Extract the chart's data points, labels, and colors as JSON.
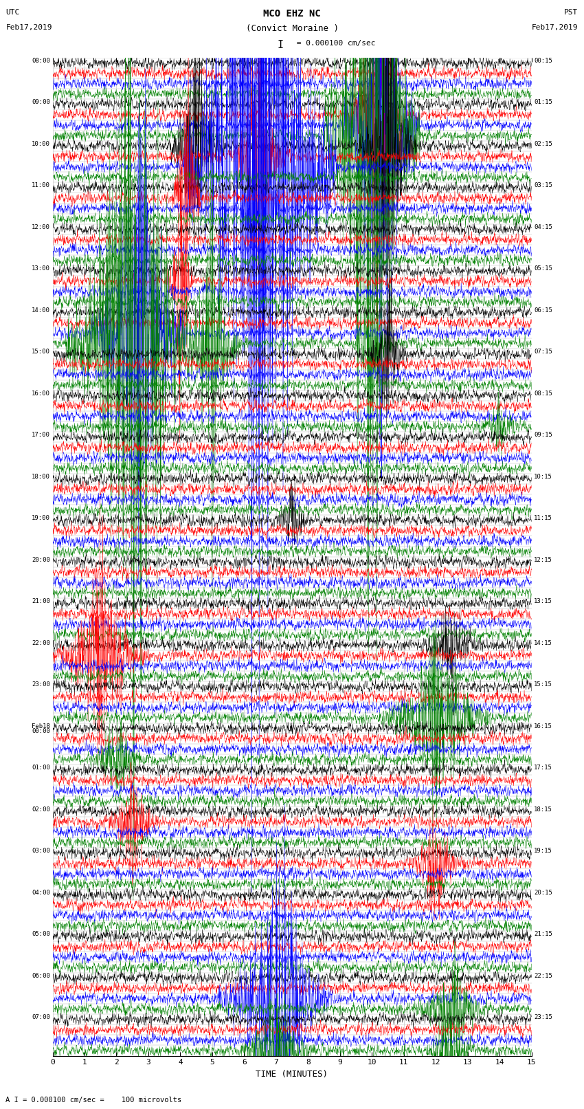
{
  "title_line1": "MCO EHZ NC",
  "title_line2": "(Convict Moraine )",
  "scale_label": "I = 0.000100 cm/sec",
  "bottom_label": "A I = 0.000100 cm/sec =    100 microvolts",
  "utc_label": "UTC\nFeb17,2019",
  "pst_label": "PST\nFeb17,2019",
  "xlabel": "TIME (MINUTES)",
  "left_times": [
    "08:00",
    "09:00",
    "10:00",
    "11:00",
    "12:00",
    "13:00",
    "14:00",
    "15:00",
    "16:00",
    "17:00",
    "18:00",
    "19:00",
    "20:00",
    "21:00",
    "22:00",
    "23:00",
    "Feb18\n00:00",
    "01:00",
    "02:00",
    "03:00",
    "04:00",
    "05:00",
    "06:00",
    "07:00"
  ],
  "right_times": [
    "00:15",
    "01:15",
    "02:15",
    "03:15",
    "04:15",
    "05:15",
    "06:15",
    "07:15",
    "08:15",
    "09:15",
    "10:15",
    "11:15",
    "12:15",
    "13:15",
    "14:15",
    "15:15",
    "16:15",
    "17:15",
    "18:15",
    "19:15",
    "20:15",
    "21:15",
    "22:15",
    "23:15"
  ],
  "colors": [
    "black",
    "red",
    "blue",
    "green"
  ],
  "n_rows": 24,
  "n_traces_per_row": 4,
  "minutes": 15,
  "background": "white",
  "grid_color": "#bbbbbb",
  "figsize": [
    8.5,
    16.13
  ],
  "dpi": 100,
  "events": [
    [
      1,
      3,
      10.0,
      12.0,
      0.5
    ],
    [
      1,
      1,
      10.2,
      5.0,
      0.3
    ],
    [
      1,
      2,
      10.3,
      6.0,
      0.4
    ],
    [
      2,
      0,
      10.5,
      4.0,
      0.3
    ],
    [
      2,
      2,
      6.5,
      12.0,
      0.8
    ],
    [
      2,
      1,
      6.5,
      3.0,
      0.3
    ],
    [
      2,
      0,
      4.5,
      3.0,
      0.3
    ],
    [
      3,
      1,
      4.2,
      3.5,
      0.15
    ],
    [
      3,
      2,
      6.5,
      5.0,
      0.2
    ],
    [
      5,
      1,
      4.0,
      3.0,
      0.15
    ],
    [
      6,
      3,
      2.5,
      12.0,
      0.7
    ],
    [
      6,
      2,
      2.7,
      6.0,
      0.5
    ],
    [
      6,
      3,
      5.0,
      5.0,
      0.3
    ],
    [
      6,
      3,
      10.0,
      3.0,
      0.2
    ],
    [
      7,
      0,
      10.5,
      3.0,
      0.2
    ],
    [
      8,
      3,
      14.0,
      3.0,
      0.2
    ],
    [
      11,
      0,
      7.5,
      3.0,
      0.2
    ],
    [
      14,
      1,
      1.5,
      7.0,
      0.5
    ],
    [
      14,
      0,
      12.5,
      4.0,
      0.3
    ],
    [
      15,
      3,
      12.0,
      8.0,
      0.6
    ],
    [
      16,
      3,
      2.0,
      4.0,
      0.3
    ],
    [
      18,
      1,
      2.5,
      4.0,
      0.3
    ],
    [
      19,
      1,
      12.0,
      4.0,
      0.3
    ],
    [
      22,
      2,
      7.0,
      10.0,
      0.6
    ],
    [
      22,
      3,
      12.5,
      5.0,
      0.4
    ],
    [
      23,
      3,
      7.0,
      6.0,
      0.4
    ],
    [
      23,
      3,
      12.5,
      4.0,
      0.3
    ]
  ]
}
